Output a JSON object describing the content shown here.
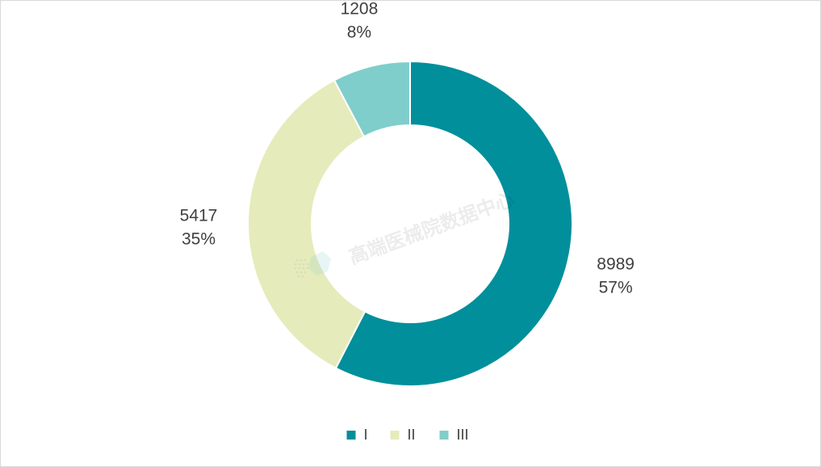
{
  "chart_data": {
    "type": "pie",
    "variant": "donut",
    "categories": [
      "I",
      "II",
      "III"
    ],
    "values": [
      8989,
      5417,
      1208
    ],
    "percent_labels": [
      "57%",
      "35%",
      "8%"
    ],
    "colors": [
      "#008f9b",
      "#e6ebbb",
      "#7fcecb"
    ],
    "legend": {
      "position": "bottom",
      "entries": [
        "I",
        "II",
        "III"
      ]
    }
  },
  "watermark": {
    "text": "高端医械院数据中心"
  }
}
